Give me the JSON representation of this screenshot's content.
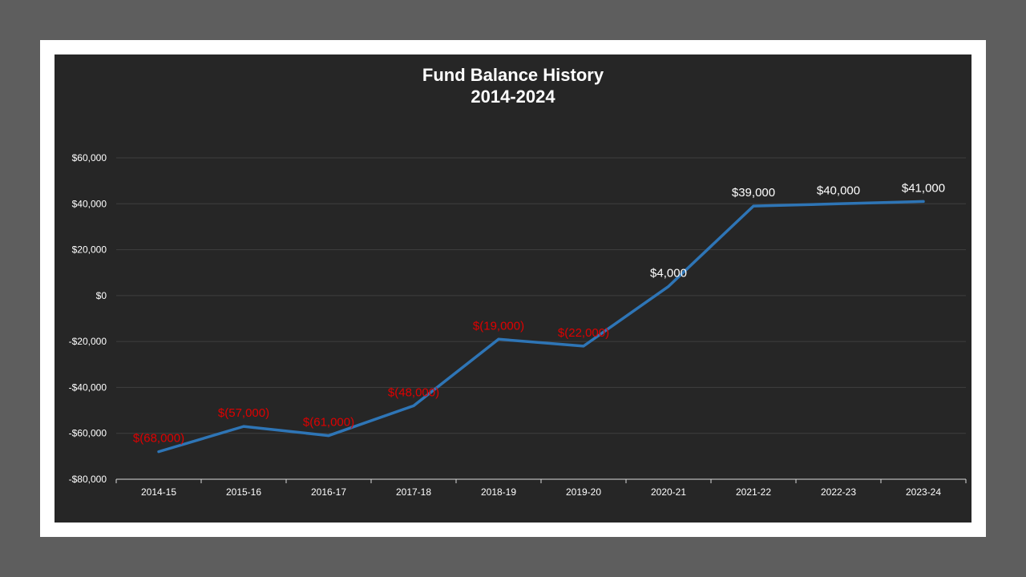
{
  "chart_data": {
    "type": "line",
    "title": "Fund Balance History",
    "subtitle": "2014-2024",
    "categories": [
      "2014-15",
      "2015-16",
      "2016-17",
      "2017-18",
      "2018-19",
      "2019-20",
      "2020-21",
      "2021-22",
      "2022-23",
      "2023-24"
    ],
    "series": [
      {
        "values": [
          -68000,
          -57000,
          -61000,
          -48000,
          -19000,
          -22000,
          4000,
          39000,
          40000,
          41000
        ],
        "data_labels": [
          "$(68,000)",
          "$(57,000)",
          "$(61,000)",
          "$(48,000)",
          "$(19,000)",
          "$(22,000)",
          "$4,000",
          "$39,000",
          "$40,000",
          "$41,000"
        ],
        "color": "#2e75b6"
      }
    ],
    "y_ticks": [
      {
        "value": 60000,
        "label": "$60,000"
      },
      {
        "value": 40000,
        "label": "$40,000"
      },
      {
        "value": 20000,
        "label": "$20,000"
      },
      {
        "value": 0,
        "label": "$0"
      },
      {
        "value": -20000,
        "label": "-$20,000"
      },
      {
        "value": -40000,
        "label": "-$40,000"
      },
      {
        "value": -60000,
        "label": "-$60,000"
      },
      {
        "value": -80000,
        "label": "-$80,000"
      }
    ],
    "ylim": [
      -80000,
      60000
    ],
    "grid": true,
    "xlabel": "",
    "ylabel": "",
    "colors": {
      "line": "#2e75b6",
      "negative_label": "#e00000",
      "positive_label": "#ffffff",
      "axis_text": "#ffffff",
      "gridline": "#3f3f3f",
      "axis_line": "#d9d9d9",
      "plot_background": "#262626"
    }
  }
}
